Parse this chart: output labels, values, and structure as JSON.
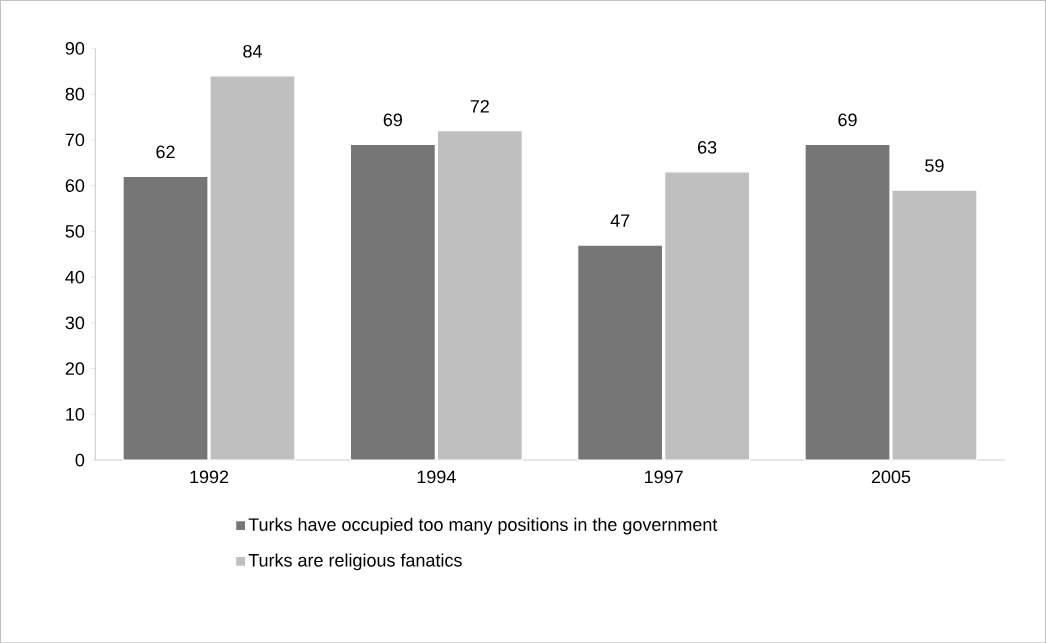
{
  "chart_data": {
    "type": "bar",
    "categories": [
      "1992",
      "1994",
      "1997",
      "2005"
    ],
    "series": [
      {
        "name": "Turks have occupied too many positions in the government",
        "color": "#767676",
        "values": [
          62,
          69,
          47,
          69
        ]
      },
      {
        "name": "Turks are religious fanatics",
        "color": "#bfbfbf",
        "values": [
          84,
          72,
          63,
          59
        ]
      }
    ],
    "ylim": [
      0,
      90
    ],
    "yticks": [
      0,
      10,
      20,
      30,
      40,
      50,
      60,
      70,
      80,
      90
    ],
    "data_labels": true,
    "legend": "bottom",
    "grid": false
  }
}
